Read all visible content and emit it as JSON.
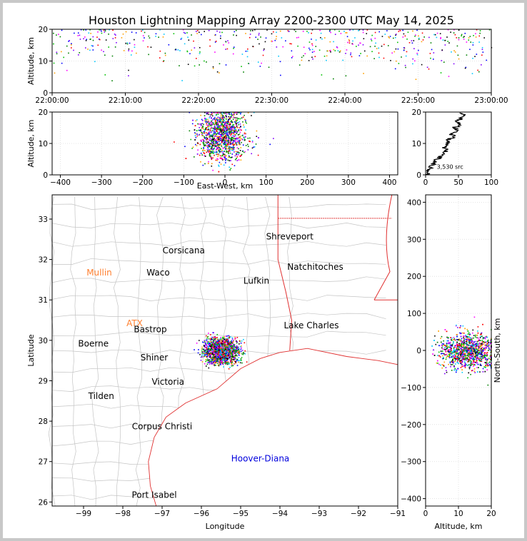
{
  "figure": {
    "title": "Houston Lightning Mapping Array 2200-2300 UTC May 14, 2025"
  },
  "chart_data": [
    {
      "id": "time_altitude",
      "type": "scatter",
      "ylabel": "Altitude, km",
      "xlabel": "",
      "x_ticks": [
        "22:00:00",
        "22:10:00",
        "22:20:00",
        "22:30:00",
        "22:40:00",
        "22:50:00",
        "23:00:00"
      ],
      "xlim": [
        "22:00:00",
        "23:00:00"
      ],
      "ylim": [
        0,
        20
      ],
      "y_ticks": [
        0,
        10,
        20
      ],
      "grid": true
    },
    {
      "id": "eastwest_altitude",
      "type": "scatter",
      "xlabel": "East-West, km",
      "ylabel": "Altitude, km",
      "xlim": [
        -420,
        420
      ],
      "ylim": [
        0,
        20
      ],
      "x_ticks": [
        -400,
        -300,
        -200,
        -100,
        0,
        100,
        200,
        300,
        400
      ],
      "y_ticks": [
        0,
        10,
        20
      ],
      "grid": true
    },
    {
      "id": "altitude_histogram",
      "type": "line",
      "xlim": [
        0,
        100
      ],
      "ylim": [
        0,
        20
      ],
      "x_ticks": [
        0,
        50,
        100
      ],
      "y_ticks": [
        0,
        10,
        20
      ],
      "annotation": "3,530 src",
      "series": [
        {
          "points": [
            [
              2,
              0
            ],
            [
              4,
              1
            ],
            [
              6,
              2
            ],
            [
              9,
              3
            ],
            [
              13,
              4
            ],
            [
              17,
              5
            ],
            [
              24,
              6
            ],
            [
              27,
              7
            ],
            [
              32,
              8
            ],
            [
              29,
              9
            ],
            [
              35,
              10
            ],
            [
              33,
              11
            ],
            [
              42,
              12
            ],
            [
              40,
              13
            ],
            [
              48,
              14
            ],
            [
              44,
              15
            ],
            [
              52,
              16
            ],
            [
              47,
              17
            ],
            [
              55,
              18
            ],
            [
              58,
              19
            ],
            [
              52,
              19.8
            ]
          ]
        }
      ]
    },
    {
      "id": "plan_view",
      "type": "scatter",
      "xlabel": "Longitude",
      "ylabel": "Latitude",
      "xlim": [
        -99.8,
        -91
      ],
      "ylim": [
        25.9,
        33.6
      ],
      "x_ticks": [
        -99,
        -98,
        -97,
        -96,
        -95,
        -94,
        -93,
        -92,
        -91
      ],
      "y_ticks": [
        26,
        27,
        28,
        29,
        30,
        31,
        32,
        33
      ],
      "cities": [
        {
          "name": "Shreveport",
          "lon": -93.75,
          "lat": 32.5
        },
        {
          "name": "Corsicana",
          "lon": -96.45,
          "lat": 32.15
        },
        {
          "name": "Natchitoches",
          "lon": -93.1,
          "lat": 31.75
        },
        {
          "name": "Mullin",
          "lon": -98.6,
          "lat": 31.6
        },
        {
          "name": "Waco",
          "lon": -97.1,
          "lat": 31.6
        },
        {
          "name": "Lufkin",
          "lon": -94.6,
          "lat": 31.4
        },
        {
          "name": "ATX",
          "lon": -97.7,
          "lat": 30.35
        },
        {
          "name": "Bastrop",
          "lon": -97.3,
          "lat": 30.2
        },
        {
          "name": "Lake Charles",
          "lon": -93.2,
          "lat": 30.3
        },
        {
          "name": "Boerne",
          "lon": -98.75,
          "lat": 29.85
        },
        {
          "name": "Shiner",
          "lon": -97.2,
          "lat": 29.5
        },
        {
          "name": "Victoria",
          "lon": -96.85,
          "lat": 28.9
        },
        {
          "name": "Tilden",
          "lon": -98.55,
          "lat": 28.55
        },
        {
          "name": "Corpus Christi",
          "lon": -97.0,
          "lat": 27.8
        },
        {
          "name": "Hoover-Diana",
          "lon": -94.5,
          "lat": 27.0
        },
        {
          "name": "Port Isabel",
          "lon": -97.2,
          "lat": 26.1
        }
      ],
      "source_cluster": {
        "center_lon": -95.5,
        "center_lat": 29.75
      }
    },
    {
      "id": "altitude_northsouth",
      "type": "scatter",
      "xlabel": "Altitude, km",
      "ylabel": "North-South, km",
      "xlim": [
        0,
        20
      ],
      "ylim": [
        -420,
        420
      ],
      "x_ticks": [
        0,
        10,
        20
      ],
      "y_ticks": [
        -400,
        -300,
        -200,
        -100,
        0,
        100,
        200,
        300,
        400
      ],
      "grid": true
    }
  ]
}
